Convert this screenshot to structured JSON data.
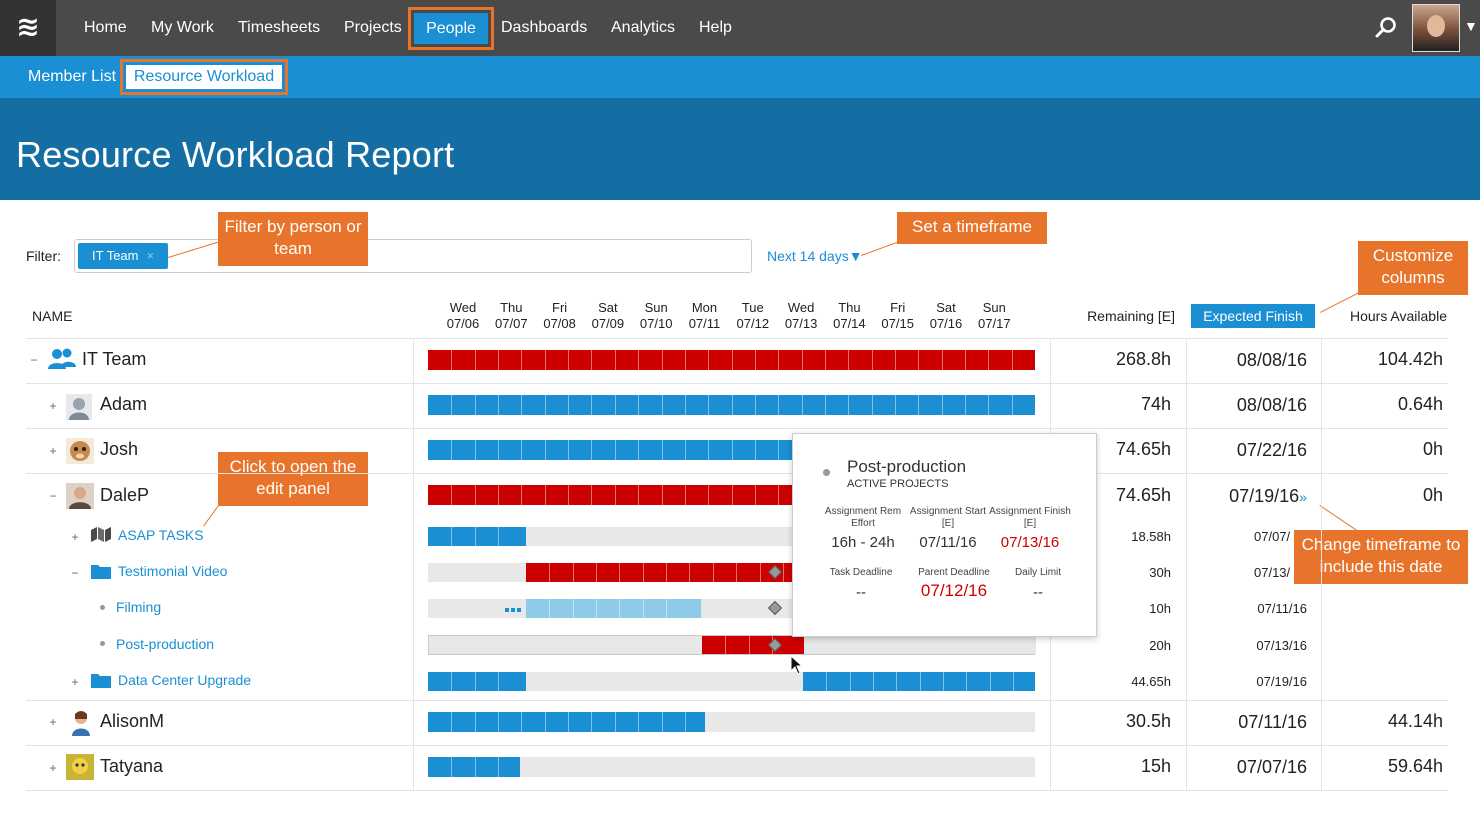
{
  "app": {
    "nav": [
      "Home",
      "My Work",
      "Timesheets",
      "Projects",
      "People",
      "Dashboards",
      "Analytics",
      "Help"
    ],
    "active_nav": "People",
    "subnav": {
      "member_list": "Member List",
      "resource_workload": "Resource Workload"
    }
  },
  "page": {
    "title": "Resource Workload Report"
  },
  "filter": {
    "label": "Filter:",
    "chip": "IT Team",
    "chip_remove": "×",
    "timeframe": "Next 14 days▼"
  },
  "callouts": {
    "filter": "Filter by person or team",
    "timeframe": "Set a timeframe",
    "columns": "Customize columns",
    "edit_panel": "Click to open the edit panel",
    "change_timeframe": "Change timeframe to include this date"
  },
  "columns": {
    "name": "NAME",
    "remaining": "Remaining [E]",
    "expected_finish": "Expected Finish",
    "hours_available": "Hours Available"
  },
  "days": [
    {
      "dow": "Wed",
      "date": "07/06"
    },
    {
      "dow": "Thu",
      "date": "07/07"
    },
    {
      "dow": "Fri",
      "date": "07/08"
    },
    {
      "dow": "Sat",
      "date": "07/09"
    },
    {
      "dow": "Sun",
      "date": "07/10"
    },
    {
      "dow": "Mon",
      "date": "07/11"
    },
    {
      "dow": "Tue",
      "date": "07/12"
    },
    {
      "dow": "Wed",
      "date": "07/13"
    },
    {
      "dow": "Thu",
      "date": "07/14"
    },
    {
      "dow": "Fri",
      "date": "07/15"
    },
    {
      "dow": "Sat",
      "date": "07/16"
    },
    {
      "dow": "Sun",
      "date": "07/17"
    }
  ],
  "colors": {
    "over": "#cc0000",
    "normal": "#1a8fd3",
    "light": "#8ecbe8",
    "empty": "#e8e8e8",
    "accent": "#e8742c"
  },
  "rows": [
    {
      "name": "IT Team",
      "icon": "team-icon",
      "toggle": "−",
      "remaining": "268.8h",
      "finish": "08/08/16",
      "hours": "104.42h"
    },
    {
      "name": "Adam",
      "icon": "avatar-icon",
      "toggle": "+",
      "remaining": "74h",
      "finish": "08/08/16",
      "hours": "0.64h"
    },
    {
      "name": "Josh",
      "icon": "avatar-icon",
      "toggle": "+",
      "remaining": "74.65h",
      "finish": "07/22/16",
      "hours": "0h"
    },
    {
      "name": "DaleP",
      "icon": "avatar-icon",
      "toggle": "−",
      "remaining": "74.65h",
      "finish": "07/19/16",
      "finish_suffix": "»",
      "hours": "0h"
    },
    {
      "name": "ASAP TASKS",
      "icon": "tasks-icon",
      "toggle": "+",
      "remaining": "18.58h",
      "finish": "07/07/"
    },
    {
      "name": "Testimonial Video",
      "icon": "folder-icon",
      "toggle": "−",
      "remaining": "30h",
      "finish": "07/13/"
    },
    {
      "name": "Filming",
      "icon": "bullet",
      "remaining": "10h",
      "finish": "07/11/16"
    },
    {
      "name": "Post-production",
      "icon": "bullet",
      "remaining": "20h",
      "finish": "07/13/16"
    },
    {
      "name": "Data Center Upgrade",
      "icon": "folder-icon",
      "toggle": "+",
      "remaining": "44.65h",
      "finish": "07/19/16"
    },
    {
      "name": "AlisonM",
      "icon": "avatar-icon",
      "toggle": "+",
      "remaining": "30.5h",
      "finish": "07/11/16",
      "hours": "44.14h"
    },
    {
      "name": "Tatyana",
      "icon": "avatar-icon",
      "toggle": "+",
      "remaining": "15h",
      "finish": "07/07/16",
      "hours": "59.64h"
    }
  ],
  "popup": {
    "title": "Post-production",
    "subtitle": "ACTIVE PROJECTS",
    "fields": [
      {
        "label": "Assignment Rem Effort",
        "value": "16h - 24h",
        "style": "normal"
      },
      {
        "label": "Assignment Start [E]",
        "value": "07/11/16",
        "style": "normal"
      },
      {
        "label": "Assignment Finish [E]",
        "value": "07/13/16",
        "style": "red"
      },
      {
        "label": "Task Deadline",
        "value": "--",
        "style": "normal"
      },
      {
        "label": "Parent Deadline",
        "value": "07/12/16",
        "style": "bigred"
      },
      {
        "label": "Daily Limit",
        "value": "--",
        "style": "normal"
      }
    ]
  }
}
